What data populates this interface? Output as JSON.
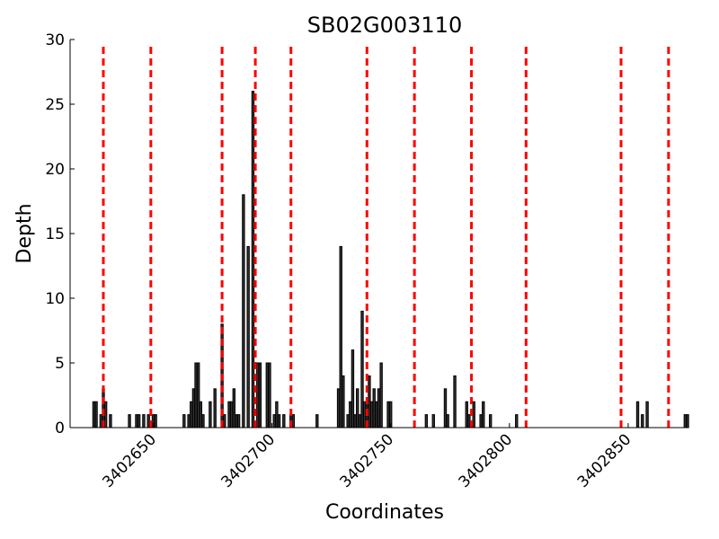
{
  "chart_data": {
    "type": "bar",
    "title": "SB02G003110",
    "xlabel": "Coordinates",
    "ylabel": "Depth",
    "xlim": [
      3402615,
      3402875
    ],
    "ylim": [
      0,
      30
    ],
    "yticks": [
      0,
      5,
      10,
      15,
      20,
      25,
      30
    ],
    "xticks": [
      3402650,
      3402700,
      3402750,
      3402800,
      3402850
    ],
    "ytick_labels": [
      "0",
      "5",
      "10",
      "15",
      "20",
      "25",
      "30"
    ],
    "xtick_labels": [
      "3402650",
      "3402700",
      "3402750",
      "3402800",
      "3402850"
    ],
    "bar_color": "#000000",
    "bar_edge_color": "#000000",
    "marker_color": "#ff0000",
    "series": [
      {
        "x": [
          3402625,
          3402626,
          3402628,
          3402629,
          3402630,
          3402632,
          3402640,
          3402643,
          3402644,
          3402646,
          3402648,
          3402650,
          3402651,
          3402663,
          3402665,
          3402666,
          3402667,
          3402668,
          3402669,
          3402670,
          3402671,
          3402674,
          3402676,
          3402679,
          3402680,
          3402682,
          3402683,
          3402684,
          3402685,
          3402686,
          3402688,
          3402690,
          3402692,
          3402694,
          3402695,
          3402698,
          3402699,
          3402701,
          3402702,
          3402703,
          3402705,
          3402708,
          3402709,
          3402719,
          3402728,
          3402729,
          3402730,
          3402732,
          3402733,
          3402734,
          3402735,
          3402736,
          3402737,
          3402738,
          3402739,
          3402740,
          3402741,
          3402742,
          3402743,
          3402744,
          3402745,
          3402746,
          3402749,
          3402750,
          3402765,
          3402768,
          3402773,
          3402774,
          3402777,
          3402782,
          3402783,
          3402785,
          3402788,
          3402789,
          3402792,
          3402803,
          3402854,
          3402856,
          3402858,
          3402874,
          3402875
        ],
        "values": [
          2,
          2,
          1,
          3,
          2,
          1,
          1,
          1,
          1,
          1,
          1,
          1,
          1,
          1,
          1,
          2,
          3,
          5,
          5,
          2,
          1,
          2,
          3,
          8,
          1,
          2,
          2,
          3,
          1,
          1,
          18,
          14,
          26,
          5,
          5,
          5,
          5,
          1,
          2,
          1,
          1,
          1,
          1,
          1,
          3,
          14,
          4,
          1,
          2,
          6,
          1,
          3,
          1,
          9,
          2,
          2,
          4,
          2,
          3,
          2,
          3,
          5,
          2,
          2,
          1,
          1,
          3,
          1,
          4,
          2,
          1,
          2,
          1,
          2,
          1,
          1,
          2,
          1,
          2,
          1,
          1
        ]
      }
    ],
    "vlines": [
      3402629,
      3402649,
      3402679,
      3402693,
      3402708,
      3402740,
      3402760,
      3402784,
      3402807,
      3402847,
      3402867
    ]
  }
}
